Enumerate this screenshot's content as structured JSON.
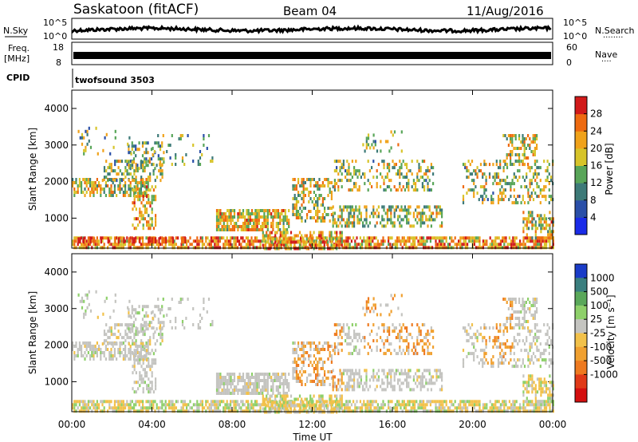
{
  "header": {
    "station": "Saskatoon (fitACF)",
    "beam": "Beam 04",
    "date": "11/Aug/2016"
  },
  "panels": {
    "sky": {
      "left_label": "N.Sky",
      "right_label": "N.Search",
      "right_marker": "········",
      "left_ticks": [
        "10^5",
        "10^0"
      ],
      "right_ticks": [
        "10^5",
        "10^0"
      ]
    },
    "freq": {
      "left_label_1": "Freq.",
      "left_label_2": "[MHz]",
      "right_label": "Nave",
      "right_marker": "····",
      "left_ticks": [
        "18",
        "8"
      ],
      "right_ticks": [
        "60",
        "0"
      ],
      "ylim": [
        8,
        18
      ],
      "value": 11.5
    },
    "cpid": {
      "label": "CPID",
      "program": "twofsound 3503"
    }
  },
  "chart_data": [
    {
      "type": "heatmap",
      "name": "power",
      "ylabel": "Slant Range [km]",
      "ylim": [
        180,
        4500
      ],
      "yticks": [
        "1000",
        "2000",
        "3000",
        "4000"
      ],
      "colorbar_label": "Power [dB]",
      "colorbar_ticks": [
        "4",
        "8",
        "12",
        "16",
        "20",
        "24",
        "28"
      ],
      "colorbar_colors": [
        "#1a2be8",
        "#2a4fa8",
        "#3d7a78",
        "#58a558",
        "#d7c42a",
        "#f0a21a",
        "#ee6a10",
        "#d11a1a"
      ],
      "x_range": [
        "00:00",
        "00:00"
      ]
    },
    {
      "type": "heatmap",
      "name": "velocity",
      "ylabel": "Slant Range [km]",
      "ylim": [
        180,
        4500
      ],
      "yticks": [
        "1000",
        "2000",
        "3000",
        "4000"
      ],
      "colorbar_label": "Velocity [m s⁻¹]",
      "colorbar_ticks": [
        "1000",
        "500",
        "100",
        "25",
        "-25",
        "-100",
        "-500",
        "-1000"
      ],
      "colorbar_colors": [
        "#1a3cc8",
        "#3a7f7f",
        "#5aa85a",
        "#8ed06a",
        "#c4c4c0",
        "#f2c14a",
        "#f0a030",
        "#ee7a20",
        "#e03a18",
        "#d40f0f"
      ],
      "xlabel": "Time UT",
      "xticks": [
        "00:00",
        "04:00",
        "08:00",
        "12:00",
        "16:00",
        "20:00",
        "00:00"
      ]
    }
  ]
}
